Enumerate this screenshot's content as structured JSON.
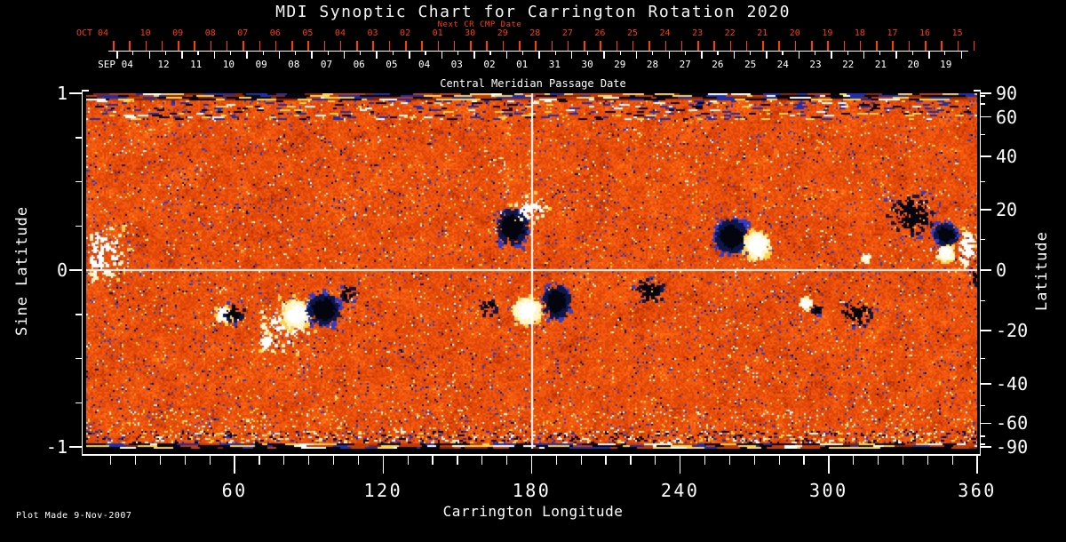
{
  "title": "MDI Synoptic Chart for Carrington Rotation 2020",
  "footer": {
    "plot_made": "Plot Made  9-Nov-2007"
  },
  "colors": {
    "background": "#000000",
    "axis": "#ffffff",
    "red_axis": "#ff3d00",
    "crosshair": "#ffffff"
  },
  "axes": {
    "top_red": {
      "label": "Next CR CMP Date",
      "month_label": "OCT 04",
      "day_labels": [
        "10",
        "09",
        "08",
        "07",
        "06",
        "05",
        "04",
        "03",
        "02",
        "01",
        "30",
        "29",
        "28",
        "27",
        "26",
        "25",
        "24",
        "23",
        "22",
        "21",
        "20",
        "19",
        "18",
        "17",
        "16",
        "15"
      ]
    },
    "top_white": {
      "label": "Central Meridian Passage Date",
      "month_label": "SEP 04",
      "day_labels": [
        "12",
        "11",
        "10",
        "09",
        "08",
        "07",
        "06",
        "05",
        "04",
        "03",
        "02",
        "01",
        "31",
        "30",
        "29",
        "28",
        "27",
        "26",
        "25",
        "24",
        "23",
        "22",
        "21",
        "20",
        "19"
      ]
    },
    "bottom": {
      "label": "Carrington Longitude",
      "tick_labels": [
        "60",
        "120",
        "180",
        "240",
        "300",
        "360"
      ]
    },
    "left": {
      "label": "Sine Latitude",
      "tick_labels": [
        "1",
        "0",
        "-1"
      ]
    },
    "right": {
      "label": "Latitude",
      "tick_labels": [
        "90",
        "60",
        "40",
        "20",
        "0",
        "-20",
        "-40",
        "-60",
        "-90"
      ]
    }
  },
  "chart_data": {
    "type": "heatmap",
    "title": "MDI Synoptic Chart for Carrington Rotation 2020",
    "xlabel": "Carrington Longitude",
    "ylabel_left": "Sine Latitude",
    "ylabel_right": "Latitude",
    "x_range": [
      0,
      360
    ],
    "sine_latitude_range": [
      -1,
      1
    ],
    "x_major_ticks": [
      60,
      120,
      180,
      240,
      300,
      360
    ],
    "x_minor_tick_step": 10,
    "sine_latitude_major_ticks": [
      1,
      0,
      -1
    ],
    "sine_latitude_minor_ticks": [
      0.75,
      0.5,
      0.25,
      -0.25,
      -0.5,
      -0.75
    ],
    "latitude_major_ticks": [
      90,
      60,
      40,
      20,
      0,
      -20,
      -40,
      -60,
      -90
    ],
    "latitude_minor_ticks": [
      80,
      70,
      50,
      30,
      10,
      -10,
      -30,
      -50,
      -70,
      -80
    ],
    "reference_lines": {
      "longitude": 180,
      "latitude": 0
    },
    "cmp_dates": {
      "month_start": "SEP 04",
      "days": [
        "12",
        "11",
        "10",
        "09",
        "08",
        "07",
        "06",
        "05",
        "04",
        "03",
        "02",
        "01",
        "31",
        "30",
        "29",
        "28",
        "27",
        "26",
        "25",
        "24",
        "23",
        "22",
        "21",
        "20",
        "19"
      ]
    },
    "next_cr_cmp_dates": {
      "month_start": "OCT 04",
      "days": [
        "10",
        "09",
        "08",
        "07",
        "06",
        "05",
        "04",
        "03",
        "02",
        "01",
        "30",
        "29",
        "28",
        "27",
        "26",
        "25",
        "24",
        "23",
        "22",
        "21",
        "20",
        "19",
        "18",
        "17",
        "16",
        "15"
      ]
    },
    "colormap_description": "magnetogram heat palette: negative polarity black/blue, quiet sun red-orange granulation, positive polarity yellow/white",
    "noise_palette": [
      [
        0.035,
        "#0d1236"
      ],
      [
        0.09,
        "#2b3bd0"
      ],
      [
        0.24,
        "#bf3503"
      ],
      [
        0.5,
        "#e04708"
      ],
      [
        0.74,
        "#f2580e"
      ],
      [
        0.88,
        "#fd6d15"
      ],
      [
        0.95,
        "#ff9b25"
      ],
      [
        0.985,
        "#ffd24a"
      ],
      [
        2,
        "#fff9dc"
      ]
    ],
    "dark_region_colors": [
      "#04040f",
      "#0c1648",
      "#2c3dd0"
    ],
    "bright_region_colors": [
      "#ffffff",
      "#fff6c8",
      "#ffd24e"
    ],
    "pole_band_colors": [
      "#05060f",
      "#1f2fae",
      "#c23a06",
      "#ffd34a",
      "#ffffff",
      "#8a2500"
    ],
    "active_regions": [
      {
        "lon": 6,
        "sinlat": 0.1,
        "type": "positive-sparse",
        "rlon": 13,
        "rsin": 0.22,
        "density": 0.5
      },
      {
        "lon": 80,
        "sinlat": -0.3,
        "type": "positive-sparse",
        "rlon": 15,
        "rsin": 0.2,
        "density": 0.55
      },
      {
        "lon": 84.5,
        "sinlat": -0.24,
        "type": "positive",
        "rlon": 7,
        "rsin": 0.1,
        "density": 3
      },
      {
        "lon": 55,
        "sinlat": -0.24,
        "type": "positive",
        "rlon": 4,
        "rsin": 0.06,
        "density": 2.2
      },
      {
        "lon": 73,
        "sinlat": -0.4,
        "type": "positive-sparse",
        "rlon": 6,
        "rsin": 0.07,
        "density": 1
      },
      {
        "lon": 95.5,
        "sinlat": -0.21,
        "type": "negative",
        "rlon": 8,
        "rsin": 0.11,
        "density": 2.6
      },
      {
        "lon": 59,
        "sinlat": -0.23,
        "type": "negative-sparse",
        "rlon": 5.5,
        "rsin": 0.08,
        "density": 1
      },
      {
        "lon": 105,
        "sinlat": -0.12,
        "type": "negative-sparse",
        "rlon": 4.5,
        "rsin": 0.06,
        "density": 1
      },
      {
        "lon": 171.5,
        "sinlat": 0.25,
        "type": "negative",
        "rlon": 8,
        "rsin": 0.13,
        "density": 1.8
      },
      {
        "lon": 179,
        "sinlat": 0.36,
        "type": "positive-sparse",
        "rlon": 9,
        "rsin": 0.1,
        "density": 0.9
      },
      {
        "lon": 177.5,
        "sinlat": -0.22,
        "type": "positive",
        "rlon": 7,
        "rsin": 0.09,
        "density": 3
      },
      {
        "lon": 189.5,
        "sinlat": -0.17,
        "type": "negative",
        "rlon": 7,
        "rsin": 0.12,
        "density": 2.2
      },
      {
        "lon": 162,
        "sinlat": -0.2,
        "type": "negative-sparse",
        "rlon": 5,
        "rsin": 0.07,
        "density": 0.9
      },
      {
        "lon": 227,
        "sinlat": -0.11,
        "type": "negative-sparse",
        "rlon": 8,
        "rsin": 0.1,
        "density": 1.1
      },
      {
        "lon": 260,
        "sinlat": 0.2,
        "type": "negative",
        "rlon": 8.5,
        "rsin": 0.12,
        "density": 2.4
      },
      {
        "lon": 270.5,
        "sinlat": 0.15,
        "type": "positive",
        "rlon": 6.5,
        "rsin": 0.1,
        "density": 2.8
      },
      {
        "lon": 290,
        "sinlat": -0.18,
        "type": "positive",
        "rlon": 3,
        "rsin": 0.045,
        "density": 2.5
      },
      {
        "lon": 294.5,
        "sinlat": -0.215,
        "type": "negative",
        "rlon": 2.4,
        "rsin": 0.035,
        "density": 2
      },
      {
        "lon": 311,
        "sinlat": -0.23,
        "type": "negative-sparse",
        "rlon": 9,
        "rsin": 0.1,
        "density": 0.8
      },
      {
        "lon": 314.5,
        "sinlat": 0.075,
        "type": "positive",
        "rlon": 2.2,
        "rsin": 0.03,
        "density": 2
      },
      {
        "lon": 333,
        "sinlat": 0.32,
        "type": "negative-sparse",
        "rlon": 13,
        "rsin": 0.17,
        "density": 1.0
      },
      {
        "lon": 346.5,
        "sinlat": 0.21,
        "type": "negative",
        "rlon": 6,
        "rsin": 0.08,
        "density": 2.6
      },
      {
        "lon": 346.5,
        "sinlat": 0.105,
        "type": "positive",
        "rlon": 4.5,
        "rsin": 0.055,
        "density": 3
      },
      {
        "lon": 355,
        "sinlat": 0.13,
        "type": "positive-sparse",
        "rlon": 5,
        "rsin": 0.15,
        "density": 1.4
      },
      {
        "lon": 358,
        "sinlat": -0.03,
        "type": "negative-sparse",
        "rlon": 2.5,
        "rsin": 0.07,
        "density": 1.5
      }
    ]
  }
}
